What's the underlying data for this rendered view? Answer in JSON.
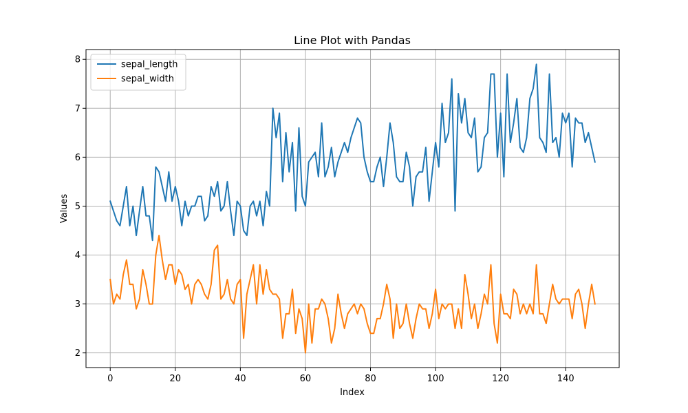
{
  "chart_data": {
    "type": "line",
    "title": "Line Plot with Pandas",
    "xlabel": "Index",
    "ylabel": "Values",
    "xlim": [
      -7.45,
      156.45
    ],
    "ylim": [
      1.7,
      8.2
    ],
    "xticks": [
      0,
      20,
      40,
      60,
      80,
      100,
      120,
      140
    ],
    "yticks": [
      2,
      3,
      4,
      5,
      6,
      7,
      8
    ],
    "grid": true,
    "legend_position": "top-left",
    "series": [
      {
        "name": "sepal_length",
        "color": "#1f77b4",
        "values": [
          5.1,
          4.9,
          4.7,
          4.6,
          5.0,
          5.4,
          4.6,
          5.0,
          4.4,
          4.9,
          5.4,
          4.8,
          4.8,
          4.3,
          5.8,
          5.7,
          5.4,
          5.1,
          5.7,
          5.1,
          5.4,
          5.1,
          4.6,
          5.1,
          4.8,
          5.0,
          5.0,
          5.2,
          5.2,
          4.7,
          4.8,
          5.4,
          5.2,
          5.5,
          4.9,
          5.0,
          5.5,
          4.9,
          4.4,
          5.1,
          5.0,
          4.5,
          4.4,
          5.0,
          5.1,
          4.8,
          5.1,
          4.6,
          5.3,
          5.0,
          7.0,
          6.4,
          6.9,
          5.5,
          6.5,
          5.7,
          6.3,
          4.9,
          6.6,
          5.2,
          5.0,
          5.9,
          6.0,
          6.1,
          5.6,
          6.7,
          5.6,
          5.8,
          6.2,
          5.6,
          5.9,
          6.1,
          6.3,
          6.1,
          6.4,
          6.6,
          6.8,
          6.7,
          6.0,
          5.7,
          5.5,
          5.5,
          5.8,
          6.0,
          5.4,
          6.0,
          6.7,
          6.3,
          5.6,
          5.5,
          5.5,
          6.1,
          5.8,
          5.0,
          5.6,
          5.7,
          5.7,
          6.2,
          5.1,
          5.7,
          6.3,
          5.8,
          7.1,
          6.3,
          6.5,
          7.6,
          4.9,
          7.3,
          6.7,
          7.2,
          6.5,
          6.4,
          6.8,
          5.7,
          5.8,
          6.4,
          6.5,
          7.7,
          7.7,
          6.0,
          6.9,
          5.6,
          7.7,
          6.3,
          6.7,
          7.2,
          6.2,
          6.1,
          6.4,
          7.2,
          7.4,
          7.9,
          6.4,
          6.3,
          6.1,
          7.7,
          6.3,
          6.4,
          6.0,
          6.9,
          6.7,
          6.9,
          5.8,
          6.8,
          6.7,
          6.7,
          6.3,
          6.5,
          6.2,
          5.9
        ]
      },
      {
        "name": "sepal_width",
        "color": "#ff7f0e",
        "values": [
          3.5,
          3.0,
          3.2,
          3.1,
          3.6,
          3.9,
          3.4,
          3.4,
          2.9,
          3.1,
          3.7,
          3.4,
          3.0,
          3.0,
          4.0,
          4.4,
          3.9,
          3.5,
          3.8,
          3.8,
          3.4,
          3.7,
          3.6,
          3.3,
          3.4,
          3.0,
          3.4,
          3.5,
          3.4,
          3.2,
          3.1,
          3.4,
          4.1,
          4.2,
          3.1,
          3.2,
          3.5,
          3.1,
          3.0,
          3.4,
          3.5,
          2.3,
          3.2,
          3.5,
          3.8,
          3.0,
          3.8,
          3.2,
          3.7,
          3.3,
          3.2,
          3.2,
          3.1,
          2.3,
          2.8,
          2.8,
          3.3,
          2.4,
          2.9,
          2.7,
          2.0,
          3.0,
          2.2,
          2.9,
          2.9,
          3.1,
          3.0,
          2.7,
          2.2,
          2.5,
          3.2,
          2.8,
          2.5,
          2.8,
          2.9,
          3.0,
          2.8,
          3.0,
          2.9,
          2.6,
          2.4,
          2.4,
          2.7,
          2.7,
          3.0,
          3.4,
          3.1,
          2.3,
          3.0,
          2.5,
          2.6,
          3.0,
          2.6,
          2.3,
          2.7,
          3.0,
          2.9,
          2.9,
          2.5,
          2.8,
          3.3,
          2.7,
          3.0,
          2.9,
          3.0,
          3.0,
          2.5,
          2.9,
          2.5,
          3.6,
          3.2,
          2.7,
          3.0,
          2.5,
          2.8,
          3.2,
          3.0,
          3.8,
          2.6,
          2.2,
          3.2,
          2.8,
          2.8,
          2.7,
          3.3,
          3.2,
          2.8,
          3.0,
          2.8,
          3.0,
          2.8,
          3.8,
          2.8,
          2.8,
          2.6,
          3.0,
          3.4,
          3.1,
          3.0,
          3.1,
          3.1,
          3.1,
          2.7,
          3.2,
          3.3,
          3.0,
          2.5,
          3.0,
          3.4,
          3.0
        ]
      }
    ]
  }
}
